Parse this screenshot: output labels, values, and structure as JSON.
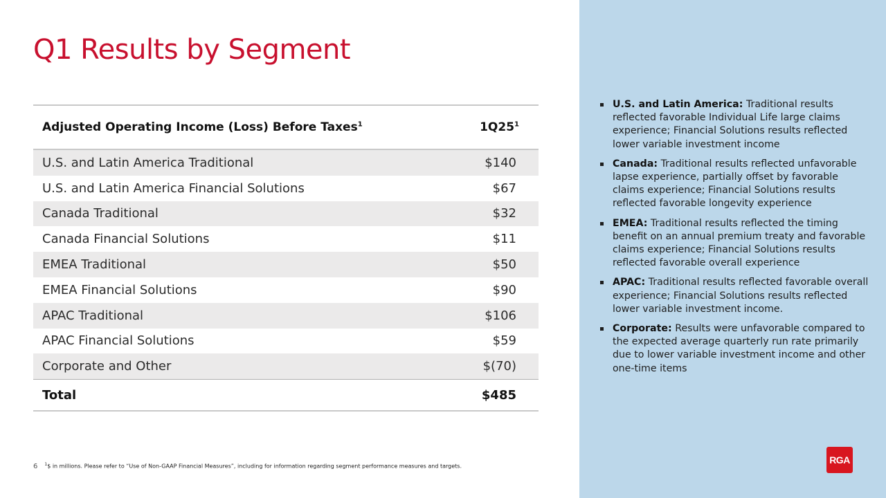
{
  "page": {
    "title": "Q1 Results by Segment",
    "page_number": "6",
    "colors": {
      "title_red": "#c8102e",
      "panel_blue": "#bcd7ea",
      "row_shade": "#ebeaea",
      "logo_red": "#d8161f"
    }
  },
  "table": {
    "header": {
      "label": "Adjusted Operating Income (Loss) Before Taxes",
      "label_sup": "1",
      "value": "1Q25",
      "value_sup": "1"
    },
    "rows": [
      {
        "label": "U.S. and Latin America Traditional",
        "value": "$140"
      },
      {
        "label": "U.S. and Latin America Financial Solutions",
        "value": "$67"
      },
      {
        "label": "Canada Traditional",
        "value": "$32"
      },
      {
        "label": "Canada Financial Solutions",
        "value": "$11"
      },
      {
        "label": "EMEA Traditional",
        "value": "$50"
      },
      {
        "label": "EMEA Financial Solutions",
        "value": "$90"
      },
      {
        "label": "APAC Traditional",
        "value": "$106"
      },
      {
        "label": "APAC Financial Solutions",
        "value": "$59"
      },
      {
        "label": "Corporate and Other",
        "value": "$(70)"
      }
    ],
    "total": {
      "label": "Total",
      "value": "$485"
    }
  },
  "footnote": {
    "sup": "1",
    "text": "$ in millions. Please refer to “Use of Non-GAAP Financial Measures”, including for information regarding segment performance measures and targets."
  },
  "bullets": [
    {
      "head": "U.S. and Latin America:",
      "text": " Traditional results reflected favorable Individual Life large claims experience; Financial Solutions results reflected lower variable investment income"
    },
    {
      "head": "Canada:",
      "text": " Traditional results reflected unfavorable lapse experience, partially offset by favorable claims experience; Financial Solutions results reflected favorable longevity experience"
    },
    {
      "head": "EMEA:",
      "text": " Traditional results reflected the timing benefit on an annual premium treaty and favorable claims experience; Financial Solutions results reflected favorable overall experience"
    },
    {
      "head": "APAC:",
      "text": " Traditional results reflected favorable overall experience; Financial Solutions results reflected lower variable investment income."
    },
    {
      "head": "Corporate:",
      "text": " Results were unfavorable compared to the expected average quarterly run rate primarily due to lower variable investment income and other one-time items"
    }
  ],
  "logo": {
    "text": "RGA",
    "icon": "rga-logo-icon"
  }
}
